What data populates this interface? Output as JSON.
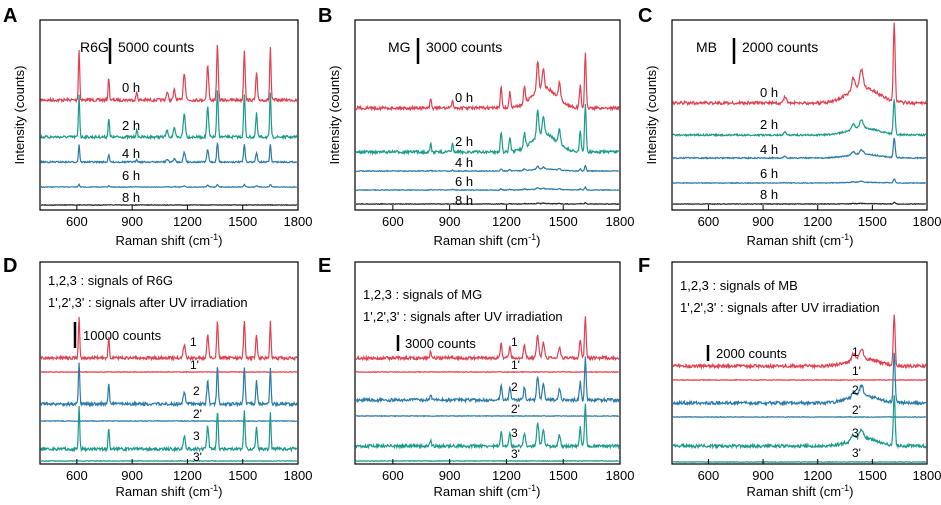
{
  "x_axis": {
    "label": "Raman shift (cm",
    "label_sup": "-1",
    "label_close": ")",
    "min": 400,
    "max": 1800,
    "ticks": [
      600,
      900,
      1200,
      1500,
      1800
    ],
    "tick_labels": [
      "600",
      "900",
      "1200",
      "1500",
      "1800"
    ],
    "ticks_af": [
      900,
      1200,
      1500,
      1800
    ],
    "tick_labels_af": [
      "900",
      "1200",
      "1500",
      "1800"
    ],
    "ticks_be": [
      600,
      900,
      1200,
      1500,
      1800
    ],
    "tick_labels_be": [
      "600",
      "900",
      "1200",
      "1500",
      "1800"
    ]
  },
  "y_axis": {
    "label": "Intensity (counts)"
  },
  "colors": {
    "red": "#e04050",
    "teal": "#1a9a8a",
    "blue": "#2a7aa8",
    "darkblue": "#3a5a9a",
    "black": "#222222"
  },
  "chart_data": [
    {
      "panel": "A",
      "type": "line",
      "dye": "R6G",
      "scale_bar": "5000 counts",
      "peaks_cm-1": [
        612,
        773,
        1183,
        1310,
        1363,
        1509,
        1575,
        1650
      ],
      "series": [
        {
          "name": "0 h",
          "label": "0 h",
          "color": "#e04050",
          "relative_intensity": 1.0
        },
        {
          "name": "2 h",
          "label": "2 h",
          "color": "#1a9a8a",
          "relative_intensity": 0.85
        },
        {
          "name": "4 h",
          "label": "4 h",
          "color": "#2a7aa8",
          "relative_intensity": 0.35
        },
        {
          "name": "6 h",
          "label": "6 h",
          "color": "#2a7aa8",
          "relative_intensity": 0.05
        },
        {
          "name": "8 h",
          "label": "8 h",
          "color": "#222222",
          "relative_intensity": 0.0
        }
      ]
    },
    {
      "panel": "B",
      "type": "line",
      "dye": "MG",
      "scale_bar": "3000 counts",
      "peaks_cm-1": [
        800,
        915,
        1172,
        1218,
        1295,
        1365,
        1395,
        1590,
        1617
      ],
      "series": [
        {
          "name": "0 h",
          "label": "0 h",
          "color": "#e04050",
          "relative_intensity": 1.0
        },
        {
          "name": "2 h",
          "label": "2 h",
          "color": "#1a9a8a",
          "relative_intensity": 0.9
        },
        {
          "name": "4 h",
          "label": "4 h",
          "color": "#2a7aa8",
          "relative_intensity": 0.1
        },
        {
          "name": "6 h",
          "label": "6 h",
          "color": "#2a7aa8",
          "relative_intensity": 0.05
        },
        {
          "name": "8 h",
          "label": "8 h",
          "color": "#222222",
          "relative_intensity": 0.02
        }
      ]
    },
    {
      "panel": "C",
      "type": "line",
      "dye": "MB",
      "scale_bar": "2000 counts",
      "peaks_cm-1": [
        1395,
        1440,
        1620
      ],
      "series": [
        {
          "name": "0 h",
          "label": "0 h",
          "color": "#e04050",
          "relative_intensity": 1.0
        },
        {
          "name": "2 h",
          "label": "2 h",
          "color": "#1a9a8a",
          "relative_intensity": 0.45
        },
        {
          "name": "4 h",
          "label": "4 h",
          "color": "#2a7aa8",
          "relative_intensity": 0.25
        },
        {
          "name": "6 h",
          "label": "6 h",
          "color": "#2a7aa8",
          "relative_intensity": 0.05
        },
        {
          "name": "8 h",
          "label": "8 h",
          "color": "#222222",
          "relative_intensity": 0.02
        }
      ]
    },
    {
      "panel": "D",
      "type": "line",
      "dye": "R6G",
      "legend_line1": "1,2,3 : signals of R6G",
      "legend_line2": "1',2',3' : signals after UV irradiation",
      "scale_bar": "10000 counts",
      "series": [
        {
          "name": "1",
          "label": "1",
          "color": "#e04050",
          "relative_intensity": 1.0
        },
        {
          "name": "1'",
          "label": "1'",
          "color": "#e04050",
          "relative_intensity": 0.0
        },
        {
          "name": "2",
          "label": "2",
          "color": "#2a7aa8",
          "relative_intensity": 1.0
        },
        {
          "name": "2'",
          "label": "2'",
          "color": "#2a7aa8",
          "relative_intensity": 0.0
        },
        {
          "name": "3",
          "label": "3",
          "color": "#1a9a8a",
          "relative_intensity": 1.0
        },
        {
          "name": "3'",
          "label": "3'",
          "color": "#1a9a8a",
          "relative_intensity": 0.0
        }
      ]
    },
    {
      "panel": "E",
      "type": "line",
      "dye": "MG",
      "legend_line1": "1,2,3 : signals of MG",
      "legend_line2": "1',2',3' : signals after UV irradiation",
      "scale_bar": "3000 counts",
      "series": [
        {
          "name": "1",
          "label": "1",
          "color": "#e04050",
          "relative_intensity": 1.0
        },
        {
          "name": "1'",
          "label": "1'",
          "color": "#e04050",
          "relative_intensity": 0.0
        },
        {
          "name": "2",
          "label": "2",
          "color": "#2a7aa8",
          "relative_intensity": 1.0
        },
        {
          "name": "2'",
          "label": "2'",
          "color": "#2a7aa8",
          "relative_intensity": 0.0
        },
        {
          "name": "3",
          "label": "3",
          "color": "#1a9a8a",
          "relative_intensity": 1.0
        },
        {
          "name": "3'",
          "label": "3'",
          "color": "#1a9a8a",
          "relative_intensity": 0.0
        }
      ]
    },
    {
      "panel": "F",
      "type": "line",
      "dye": "MB",
      "legend_line1": "1,2,3 : signals of MB",
      "legend_line2": "1',2',3' : signals after UV irradiation",
      "scale_bar": "2000 counts",
      "series": [
        {
          "name": "1",
          "label": "1",
          "color": "#e04050",
          "relative_intensity": 1.0
        },
        {
          "name": "1'",
          "label": "1'",
          "color": "#e04050",
          "relative_intensity": 0.0
        },
        {
          "name": "2",
          "label": "2",
          "color": "#2a7aa8",
          "relative_intensity": 1.0
        },
        {
          "name": "2'",
          "label": "2'",
          "color": "#2a7aa8",
          "relative_intensity": 0.0
        },
        {
          "name": "3",
          "label": "3",
          "color": "#1a9a8a",
          "relative_intensity": 1.0
        },
        {
          "name": "3'",
          "label": "3'",
          "color": "#1a9a8a",
          "relative_intensity": 0.0
        }
      ]
    }
  ]
}
